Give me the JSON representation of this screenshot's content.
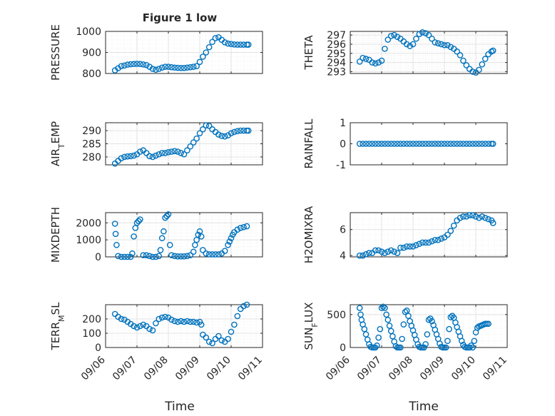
{
  "figure": {
    "title": "Figure 1 low",
    "xlabel": "Time",
    "marker_color": "#0072BD",
    "grid_color": "#dfdfdf",
    "axes_color": "#262626"
  },
  "chart_data": [
    {
      "type": "scatter",
      "ylabel": "PRESSURE",
      "ylabel_sub": "",
      "ylabel_tail": "",
      "ylim": [
        800,
        1000
      ],
      "yticks": [
        800,
        900,
        1000
      ],
      "yticklabels": [
        "800",
        "900",
        "1000"
      ],
      "xlim": [
        0,
        5
      ],
      "x_start_date": "09/06",
      "xticks": [
        0,
        1,
        2,
        3,
        4,
        5
      ],
      "xticklabels": [],
      "grid": true,
      "x": [
        0.3,
        0.4,
        0.5,
        0.6,
        0.7,
        0.8,
        0.9,
        1.0,
        1.1,
        1.2,
        1.3,
        1.4,
        1.5,
        1.6,
        1.7,
        1.8,
        1.9,
        2.0,
        2.1,
        2.2,
        2.3,
        2.4,
        2.5,
        2.6,
        2.7,
        2.8,
        2.9,
        3.0,
        3.1,
        3.2,
        3.3,
        3.4,
        3.5,
        3.6,
        3.7,
        3.8,
        3.9,
        4.0,
        4.1,
        4.2,
        4.3,
        4.4,
        4.5,
        4.55
      ],
      "y": [
        815,
        825,
        835,
        838,
        842,
        844,
        845,
        846,
        845,
        843,
        840,
        832,
        822,
        818,
        822,
        828,
        832,
        832,
        830,
        828,
        827,
        826,
        826,
        828,
        830,
        832,
        835,
        855,
        880,
        900,
        925,
        950,
        968,
        972,
        960,
        948,
        942,
        940,
        938,
        937,
        937,
        937,
        937,
        937
      ]
    },
    {
      "type": "scatter",
      "ylabel": "THETA",
      "ylabel_sub": "",
      "ylabel_tail": "",
      "ylim": [
        292.8,
        297.4
      ],
      "yticks": [
        293,
        294,
        295,
        296,
        297
      ],
      "yticklabels": [
        "293",
        "294",
        "295",
        "296",
        "297"
      ],
      "xlim": [
        0,
        5
      ],
      "x_start_date": "09/06",
      "xticks": [
        0,
        1,
        2,
        3,
        4,
        5
      ],
      "xticklabels": [],
      "grid": true,
      "x": [
        0.3,
        0.4,
        0.5,
        0.6,
        0.7,
        0.8,
        0.9,
        1.0,
        1.1,
        1.2,
        1.3,
        1.4,
        1.5,
        1.6,
        1.7,
        1.8,
        1.9,
        2.0,
        2.1,
        2.2,
        2.3,
        2.4,
        2.5,
        2.6,
        2.7,
        2.8,
        2.9,
        3.0,
        3.1,
        3.2,
        3.3,
        3.4,
        3.5,
        3.6,
        3.7,
        3.8,
        3.9,
        4.0,
        4.1,
        4.2,
        4.3,
        4.4,
        4.5,
        4.55
      ],
      "y": [
        294.1,
        294.5,
        294.4,
        294.3,
        294.0,
        293.9,
        294.0,
        294.2,
        295.5,
        296.5,
        296.9,
        297.0,
        296.8,
        296.6,
        296.3,
        296.0,
        295.8,
        296.0,
        296.6,
        297.1,
        297.3,
        297.2,
        297.0,
        296.6,
        296.2,
        296.1,
        296.0,
        295.9,
        295.9,
        295.7,
        295.5,
        295.2,
        294.8,
        294.2,
        293.7,
        293.3,
        293.0,
        292.9,
        293.2,
        293.8,
        294.4,
        294.9,
        295.2,
        295.3
      ]
    },
    {
      "type": "scatter",
      "ylabel": "AIR",
      "ylabel_sub": "T",
      "ylabel_tail": "EMP",
      "ylim": [
        277,
        293
      ],
      "yticks": [
        280,
        285,
        290
      ],
      "yticklabels": [
        "280",
        "285",
        "290"
      ],
      "xlim": [
        0,
        5
      ],
      "x_start_date": "09/06",
      "xticks": [
        0,
        1,
        2,
        3,
        4,
        5
      ],
      "xticklabels": [],
      "grid": true,
      "x": [
        0.3,
        0.4,
        0.5,
        0.6,
        0.7,
        0.8,
        0.9,
        1.0,
        1.1,
        1.2,
        1.3,
        1.4,
        1.5,
        1.6,
        1.7,
        1.8,
        1.9,
        2.0,
        2.1,
        2.2,
        2.3,
        2.4,
        2.5,
        2.6,
        2.7,
        2.8,
        2.9,
        3.0,
        3.1,
        3.2,
        3.3,
        3.4,
        3.5,
        3.6,
        3.7,
        3.8,
        3.9,
        4.0,
        4.1,
        4.2,
        4.3,
        4.4,
        4.5,
        4.55
      ],
      "y": [
        277.5,
        278.5,
        279.5,
        280.0,
        280.2,
        280.3,
        280.5,
        281.0,
        282.0,
        282.5,
        281.5,
        280.3,
        280.0,
        280.5,
        281.0,
        281.5,
        281.5,
        281.8,
        282.0,
        282.2,
        282.0,
        281.5,
        281.0,
        282.5,
        284.0,
        285.5,
        287.0,
        289.0,
        290.5,
        292.0,
        291.8,
        290.5,
        289.5,
        288.5,
        288.0,
        287.8,
        288.2,
        289.0,
        289.5,
        289.8,
        290.0,
        290.0,
        290.0,
        290.0
      ]
    },
    {
      "type": "scatter",
      "ylabel": "RAINFALL",
      "ylabel_sub": "",
      "ylabel_tail": "",
      "ylim": [
        -1,
        1
      ],
      "yticks": [
        -1,
        0,
        1
      ],
      "yticklabels": [
        "-1",
        "0",
        "1"
      ],
      "xlim": [
        0,
        5
      ],
      "x_start_date": "09/06",
      "xticks": [
        0,
        1,
        2,
        3,
        4,
        5
      ],
      "xticklabels": [],
      "grid": false,
      "x": [
        0.3,
        0.4,
        0.5,
        0.6,
        0.7,
        0.8,
        0.9,
        1.0,
        1.1,
        1.2,
        1.3,
        1.4,
        1.5,
        1.6,
        1.7,
        1.8,
        1.9,
        2.0,
        2.1,
        2.2,
        2.3,
        2.4,
        2.5,
        2.6,
        2.7,
        2.8,
        2.9,
        3.0,
        3.1,
        3.2,
        3.3,
        3.4,
        3.5,
        3.6,
        3.7,
        3.8,
        3.9,
        4.0,
        4.1,
        4.2,
        4.3,
        4.4,
        4.5,
        4.55
      ],
      "y": [
        0,
        0,
        0,
        0,
        0,
        0,
        0,
        0,
        0,
        0,
        0,
        0,
        0,
        0,
        0,
        0,
        0,
        0,
        0,
        0,
        0,
        0,
        0,
        0,
        0,
        0,
        0,
        0,
        0,
        0,
        0,
        0,
        0,
        0,
        0,
        0,
        0,
        0,
        0,
        0,
        0,
        0,
        0,
        0
      ]
    },
    {
      "type": "scatter",
      "ylabel": "MIXDEPTH",
      "ylabel_sub": "",
      "ylabel_tail": "",
      "ylim": [
        0,
        2600
      ],
      "yticks": [
        0,
        1000,
        2000
      ],
      "yticklabels": [
        "0",
        "1000",
        "2000"
      ],
      "xlim": [
        0,
        5
      ],
      "x_start_date": "09/06",
      "xticks": [
        0,
        1,
        2,
        3,
        4,
        5
      ],
      "xticklabels": [],
      "grid": true,
      "x": [
        0.3,
        0.32,
        0.35,
        0.4,
        0.5,
        0.6,
        0.7,
        0.8,
        0.85,
        0.9,
        0.95,
        1.0,
        1.05,
        1.1,
        1.2,
        1.3,
        1.4,
        1.5,
        1.6,
        1.7,
        1.75,
        1.8,
        1.85,
        1.9,
        1.95,
        2.0,
        2.05,
        2.1,
        2.2,
        2.3,
        2.4,
        2.5,
        2.6,
        2.7,
        2.8,
        2.85,
        2.9,
        2.95,
        3.0,
        3.05,
        3.1,
        3.2,
        3.3,
        3.4,
        3.5,
        3.6,
        3.7,
        3.8,
        3.9,
        3.95,
        4.0,
        4.05,
        4.1,
        4.2,
        4.3,
        4.4,
        4.5
      ],
      "y": [
        1950,
        1350,
        700,
        50,
        0,
        0,
        0,
        0,
        200,
        1200,
        1700,
        2000,
        2100,
        2200,
        100,
        100,
        50,
        0,
        0,
        50,
        400,
        1100,
        1500,
        2300,
        2400,
        2500,
        700,
        100,
        50,
        30,
        30,
        30,
        50,
        100,
        300,
        700,
        1000,
        1300,
        1500,
        1200,
        400,
        200,
        150,
        150,
        150,
        150,
        200,
        350,
        700,
        900,
        1100,
        1300,
        1450,
        1600,
        1700,
        1750,
        1800
      ]
    },
    {
      "type": "scatter",
      "ylabel": "H2OMIXRA",
      "ylabel_sub": "",
      "ylabel_tail": "",
      "ylim": [
        3.9,
        7.3
      ],
      "yticks": [
        4,
        6
      ],
      "yticklabels": [
        "4",
        "6"
      ],
      "xlim": [
        0,
        5
      ],
      "x_start_date": "09/06",
      "xticks": [
        0,
        1,
        2,
        3,
        4,
        5
      ],
      "xticklabels": [],
      "grid": true,
      "x": [
        0.3,
        0.4,
        0.5,
        0.6,
        0.7,
        0.8,
        0.9,
        1.0,
        1.1,
        1.2,
        1.3,
        1.4,
        1.5,
        1.6,
        1.7,
        1.8,
        1.9,
        2.0,
        2.1,
        2.2,
        2.3,
        2.4,
        2.5,
        2.6,
        2.7,
        2.8,
        2.9,
        3.0,
        3.1,
        3.2,
        3.3,
        3.4,
        3.5,
        3.6,
        3.7,
        3.8,
        3.9,
        4.0,
        4.1,
        4.2,
        4.3,
        4.4,
        4.5,
        4.55
      ],
      "y": [
        4.0,
        4.0,
        4.1,
        4.2,
        4.2,
        4.4,
        4.4,
        4.3,
        4.2,
        4.3,
        4.4,
        4.3,
        4.2,
        4.6,
        4.6,
        4.7,
        4.7,
        4.7,
        4.8,
        4.9,
        5.0,
        5.0,
        5.0,
        5.1,
        5.2,
        5.2,
        5.3,
        5.4,
        5.6,
        5.9,
        6.3,
        6.7,
        6.9,
        7.0,
        7.0,
        7.1,
        7.1,
        7.0,
        6.9,
        7.0,
        6.9,
        6.8,
        6.7,
        6.5
      ]
    },
    {
      "type": "scatter",
      "ylabel": "TERR",
      "ylabel_sub": "M",
      "ylabel_tail": "SL",
      "ylim": [
        0,
        300
      ],
      "yticks": [
        0,
        100,
        200
      ],
      "yticklabels": [
        "0",
        "100",
        "200"
      ],
      "xlim": [
        0,
        5
      ],
      "x_start_date": "09/06",
      "xticks": [
        0,
        1,
        2,
        3,
        4,
        5
      ],
      "xticklabels": [
        "09/06",
        "09/07",
        "09/08",
        "09/09",
        "09/10",
        "09/11"
      ],
      "grid": true,
      "x": [
        0.3,
        0.4,
        0.5,
        0.6,
        0.7,
        0.8,
        0.9,
        1.0,
        1.1,
        1.2,
        1.3,
        1.4,
        1.5,
        1.6,
        1.7,
        1.8,
        1.9,
        2.0,
        2.1,
        2.2,
        2.3,
        2.4,
        2.5,
        2.6,
        2.7,
        2.8,
        2.9,
        3.0,
        3.05,
        3.1,
        3.2,
        3.3,
        3.4,
        3.5,
        3.6,
        3.7,
        3.8,
        3.9,
        4.0,
        4.1,
        4.2,
        4.3,
        4.4,
        4.5
      ],
      "y": [
        235,
        215,
        200,
        195,
        180,
        165,
        150,
        140,
        150,
        160,
        150,
        130,
        120,
        170,
        200,
        210,
        215,
        210,
        195,
        185,
        180,
        185,
        180,
        185,
        180,
        180,
        175,
        180,
        160,
        90,
        70,
        40,
        30,
        60,
        80,
        50,
        40,
        60,
        110,
        160,
        220,
        270,
        290,
        300
      ]
    },
    {
      "type": "scatter",
      "ylabel": "SUN",
      "ylabel_sub": "F",
      "ylabel_tail": "LUX",
      "ylim": [
        0,
        650
      ],
      "yticks": [
        0,
        500
      ],
      "yticklabels": [
        "0",
        "500"
      ],
      "xlim": [
        0,
        5
      ],
      "x_start_date": "09/06",
      "xticks": [
        0,
        1,
        2,
        3,
        4,
        5
      ],
      "xticklabels": [
        "09/06",
        "09/07",
        "09/08",
        "09/09",
        "09/10",
        "09/11"
      ],
      "grid": true,
      "x": [
        0.3,
        0.33,
        0.36,
        0.4,
        0.45,
        0.5,
        0.55,
        0.6,
        0.65,
        0.7,
        0.75,
        0.8,
        0.85,
        0.9,
        0.95,
        1.0,
        1.05,
        1.1,
        1.15,
        1.2,
        1.25,
        1.3,
        1.35,
        1.4,
        1.45,
        1.5,
        1.55,
        1.6,
        1.65,
        1.7,
        1.75,
        1.8,
        1.85,
        1.9,
        1.95,
        2.0,
        2.05,
        2.1,
        2.15,
        2.2,
        2.25,
        2.3,
        2.35,
        2.4,
        2.45,
        2.5,
        2.55,
        2.6,
        2.65,
        2.7,
        2.75,
        2.8,
        2.85,
        2.9,
        2.95,
        3.0,
        3.05,
        3.1,
        3.15,
        3.2,
        3.25,
        3.3,
        3.35,
        3.4,
        3.45,
        3.5,
        3.55,
        3.6,
        3.65,
        3.7,
        3.75,
        3.8,
        3.85,
        3.9,
        3.95,
        4.0,
        4.05,
        4.1,
        4.15,
        4.2,
        4.25,
        4.3,
        4.35,
        4.4
      ],
      "y": [
        600,
        500,
        420,
        350,
        280,
        200,
        120,
        50,
        10,
        0,
        0,
        0,
        30,
        150,
        280,
        600,
        620,
        600,
        500,
        420,
        330,
        250,
        170,
        90,
        20,
        0,
        0,
        0,
        130,
        350,
        540,
        560,
        480,
        400,
        330,
        260,
        190,
        120,
        50,
        10,
        0,
        0,
        0,
        50,
        200,
        420,
        440,
        400,
        340,
        270,
        200,
        130,
        60,
        10,
        0,
        0,
        0,
        100,
        280,
        460,
        480,
        450,
        380,
        310,
        240,
        170,
        100,
        40,
        10,
        0,
        0,
        0,
        30,
        0,
        100,
        230,
        300,
        320,
        330,
        340,
        350,
        360,
        360,
        360
      ]
    }
  ]
}
